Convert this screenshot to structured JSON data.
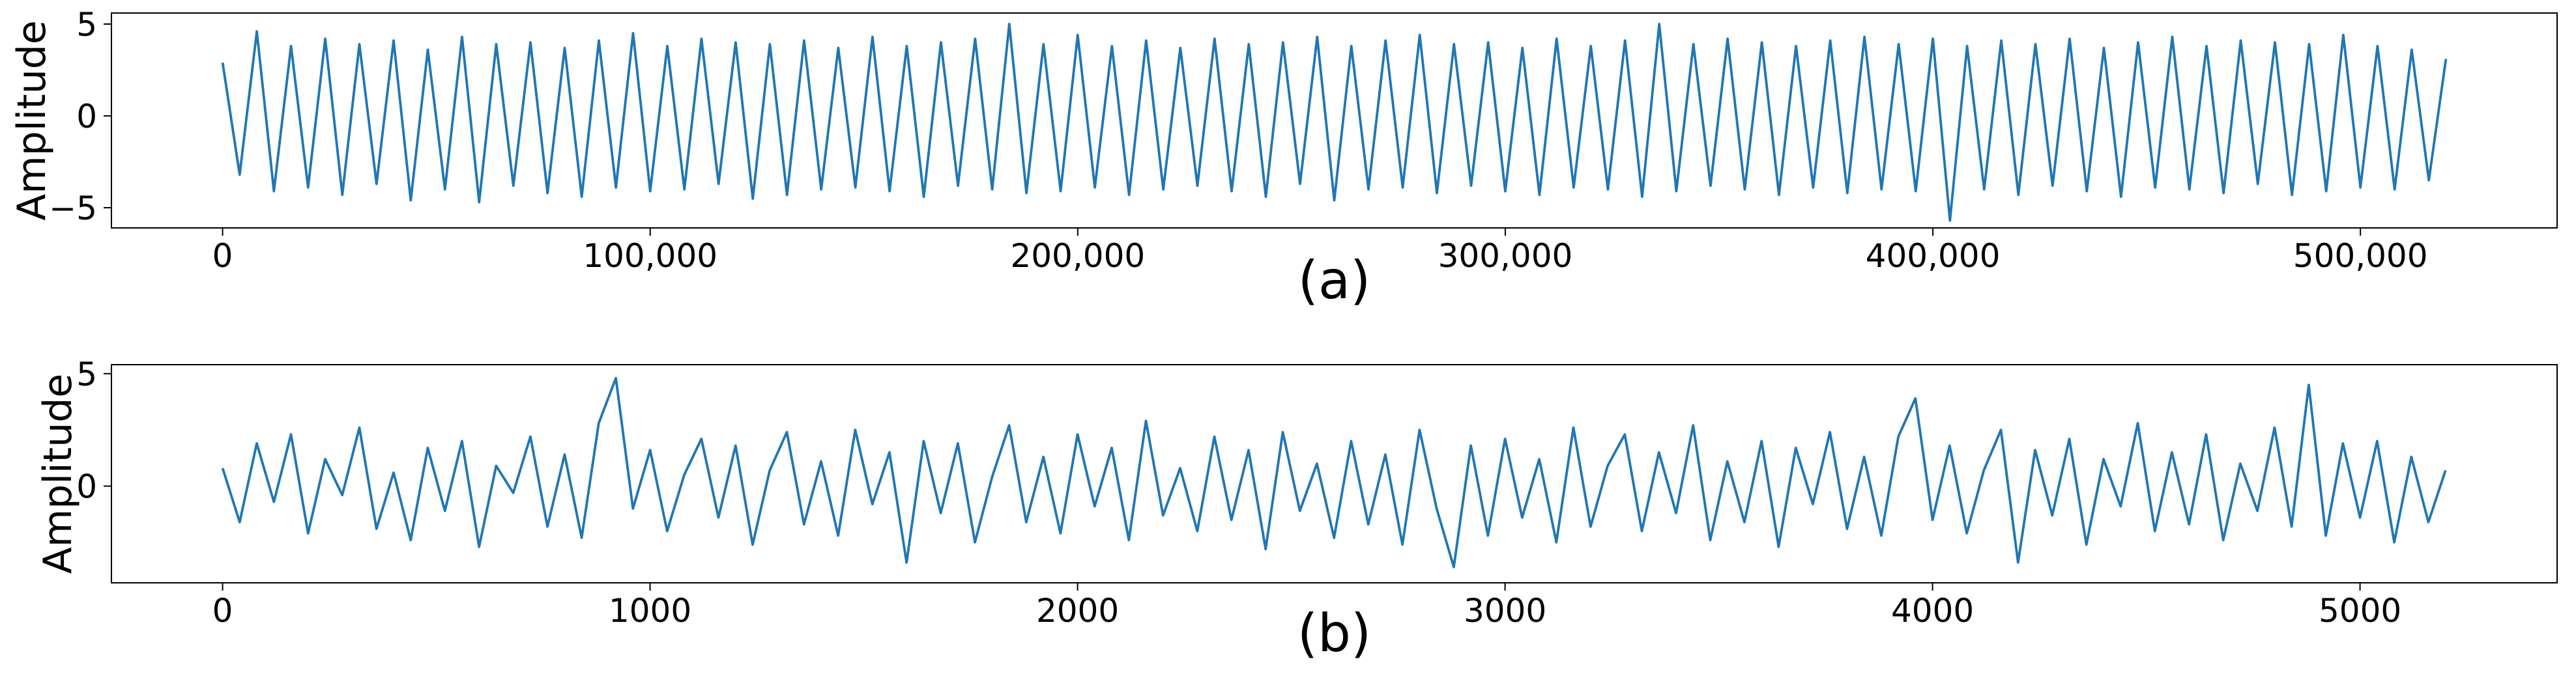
{
  "chart_data": [
    {
      "type": "line",
      "ylabel": "Amplitude",
      "xlabel": "(a)",
      "color": "#1f77b4",
      "x": [
        0,
        4000,
        8000,
        12000,
        16000,
        20000,
        24000,
        28000,
        32000,
        36000,
        40000,
        44000,
        48000,
        52000,
        56000,
        60000,
        64000,
        68000,
        72000,
        76000,
        80000,
        84000,
        88000,
        92000,
        96000,
        100000,
        104000,
        108000,
        112000,
        116000,
        120000,
        124000,
        128000,
        132000,
        136000,
        140000,
        144000,
        148000,
        152000,
        156000,
        160000,
        164000,
        168000,
        172000,
        176000,
        180000,
        184000,
        188000,
        192000,
        196000,
        200000,
        204000,
        208000,
        212000,
        216000,
        220000,
        224000,
        228000,
        232000,
        236000,
        240000,
        244000,
        248000,
        252000,
        256000,
        260000,
        264000,
        268000,
        272000,
        276000,
        280000,
        284000,
        288000,
        292000,
        296000,
        300000,
        304000,
        308000,
        312000,
        316000,
        320000,
        324000,
        328000,
        332000,
        336000,
        340000,
        344000,
        348000,
        352000,
        356000,
        360000,
        364000,
        368000,
        372000,
        376000,
        380000,
        384000,
        388000,
        392000,
        396000,
        400000,
        404000,
        408000,
        412000,
        416000,
        420000,
        424000,
        428000,
        432000,
        436000,
        440000,
        444000,
        448000,
        452000,
        456000,
        460000,
        464000,
        468000,
        472000,
        476000,
        480000,
        484000,
        488000,
        492000,
        496000,
        500000,
        504000,
        508000,
        512000,
        516000,
        520000
      ],
      "values": [
        2.9,
        -3.2,
        4.6,
        -4.1,
        3.8,
        -3.9,
        4.2,
        -4.3,
        3.9,
        -3.7,
        4.1,
        -4.6,
        3.6,
        -4.0,
        4.3,
        -4.7,
        3.9,
        -3.8,
        4.0,
        -4.2,
        3.7,
        -4.4,
        4.1,
        -3.9,
        4.5,
        -4.1,
        3.8,
        -4.0,
        4.2,
        -3.7,
        4.0,
        -4.5,
        3.9,
        -4.3,
        4.1,
        -4.0,
        3.7,
        -3.9,
        4.3,
        -4.1,
        3.8,
        -4.4,
        4.0,
        -3.8,
        4.2,
        -4.0,
        5.0,
        -4.2,
        3.9,
        -4.1,
        4.4,
        -3.9,
        3.8,
        -4.3,
        4.1,
        -4.0,
        3.7,
        -3.8,
        4.2,
        -4.1,
        3.9,
        -4.4,
        4.0,
        -3.7,
        4.3,
        -4.6,
        3.8,
        -4.0,
        4.1,
        -3.9,
        4.4,
        -4.2,
        3.9,
        -3.8,
        4.0,
        -4.1,
        3.7,
        -4.3,
        4.2,
        -3.9,
        3.8,
        -4.0,
        4.1,
        -4.4,
        5.0,
        -4.1,
        3.9,
        -3.8,
        4.2,
        -4.0,
        4.0,
        -4.3,
        3.8,
        -3.9,
        4.1,
        -4.2,
        4.3,
        -4.0,
        3.9,
        -4.1,
        4.2,
        -5.7,
        3.8,
        -4.0,
        4.1,
        -4.3,
        3.9,
        -3.8,
        4.2,
        -4.1,
        3.7,
        -4.4,
        4.0,
        -3.9,
        4.3,
        -4.0,
        3.8,
        -4.2,
        4.1,
        -3.7,
        4.0,
        -4.3,
        3.9,
        -4.1,
        4.4,
        -3.9,
        3.8,
        -4.0,
        3.6,
        -3.5,
        3.1
      ],
      "xlim": [
        -26000,
        546000
      ],
      "ylim": [
        -6.1,
        5.6
      ],
      "xticks": [
        0,
        {
          "value": 100000,
          "label": "100,000"
        },
        {
          "value": 200000,
          "label": "200,000"
        },
        {
          "value": 300000,
          "label": "300,000"
        },
        {
          "value": 400000,
          "label": "400,000"
        },
        {
          "value": 500000,
          "label": "500,000"
        }
      ],
      "yticks": [
        {
          "value": -5,
          "label": "−5"
        },
        0,
        5
      ]
    },
    {
      "type": "line",
      "ylabel": "Amplitude",
      "xlabel": "(b)",
      "color": "#1f77b4",
      "x": [
        0,
        40,
        80,
        120,
        160,
        200,
        240,
        280,
        320,
        360,
        400,
        440,
        480,
        520,
        560,
        600,
        640,
        680,
        720,
        760,
        800,
        840,
        880,
        920,
        960,
        1000,
        1040,
        1080,
        1120,
        1160,
        1200,
        1240,
        1280,
        1320,
        1360,
        1400,
        1440,
        1480,
        1520,
        1560,
        1600,
        1640,
        1680,
        1720,
        1760,
        1800,
        1840,
        1880,
        1920,
        1960,
        2000,
        2040,
        2080,
        2120,
        2160,
        2200,
        2240,
        2280,
        2320,
        2360,
        2400,
        2440,
        2480,
        2520,
        2560,
        2600,
        2640,
        2680,
        2720,
        2760,
        2800,
        2840,
        2880,
        2920,
        2960,
        3000,
        3040,
        3080,
        3120,
        3160,
        3200,
        3240,
        3280,
        3320,
        3360,
        3400,
        3440,
        3480,
        3520,
        3560,
        3600,
        3640,
        3680,
        3720,
        3760,
        3800,
        3840,
        3880,
        3920,
        3960,
        4000,
        4040,
        4080,
        4120,
        4160,
        4200,
        4240,
        4280,
        4320,
        4360,
        4400,
        4440,
        4480,
        4520,
        4560,
        4600,
        4640,
        4680,
        4720,
        4760,
        4800,
        4840,
        4880,
        4920,
        4960,
        5000,
        5040,
        5080,
        5120,
        5160,
        5200
      ],
      "values": [
        0.8,
        -1.6,
        1.9,
        -0.7,
        2.3,
        -2.1,
        1.2,
        -0.4,
        2.6,
        -1.9,
        0.6,
        -2.4,
        1.7,
        -1.1,
        2.0,
        -2.7,
        0.9,
        -0.3,
        2.2,
        -1.8,
        1.4,
        -2.3,
        2.8,
        4.8,
        -1.0,
        1.6,
        -2.0,
        0.5,
        2.1,
        -1.4,
        1.8,
        -2.6,
        0.7,
        2.4,
        -1.7,
        1.1,
        -2.2,
        2.5,
        -0.8,
        1.5,
        -3.4,
        2.0,
        -1.2,
        1.9,
        -2.5,
        0.4,
        2.7,
        -1.6,
        1.3,
        -2.1,
        2.3,
        -0.9,
        1.7,
        -2.4,
        2.9,
        -1.3,
        0.8,
        -2.0,
        2.2,
        -1.5,
        1.6,
        -2.8,
        2.4,
        -1.1,
        1.0,
        -2.3,
        2.0,
        -1.7,
        1.4,
        -2.6,
        2.5,
        -1.0,
        -3.6,
        1.8,
        -2.2,
        2.1,
        -1.4,
        1.2,
        -2.5,
        2.6,
        -1.8,
        0.9,
        2.3,
        -2.0,
        1.5,
        -1.2,
        2.7,
        -2.4,
        1.1,
        -1.6,
        2.0,
        -2.7,
        1.7,
        -0.8,
        2.4,
        -1.9,
        1.3,
        -2.2,
        2.2,
        3.9,
        -1.5,
        1.8,
        -2.1,
        0.7,
        2.5,
        -3.4,
        1.6,
        -1.3,
        2.1,
        -2.6,
        1.2,
        -0.9,
        2.8,
        -2.0,
        1.5,
        -1.7,
        2.3,
        -2.4,
        1.0,
        -1.1,
        2.6,
        -1.8,
        4.5,
        -2.2,
        1.9,
        -1.4,
        2.0,
        -2.5,
        1.3,
        -1.6,
        0.7
      ],
      "xlim": [
        -260,
        5461
      ],
      "ylim": [
        -4.3,
        5.4
      ],
      "xticks": [
        0,
        1000,
        2000,
        3000,
        4000,
        5000
      ],
      "yticks": [
        0,
        5
      ]
    }
  ]
}
